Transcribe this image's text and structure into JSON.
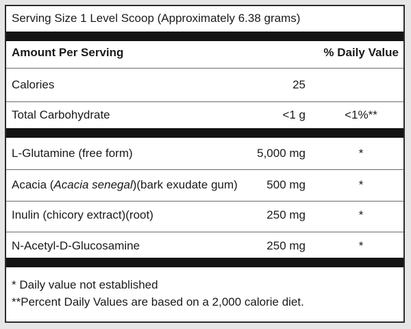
{
  "serving_size": "Serving Size 1 Level Scoop (Approximately 6.38 grams)",
  "header": {
    "amount_per_serving": "Amount Per Serving",
    "daily_value": "% Daily Value"
  },
  "basic_rows": [
    {
      "name": "Calories",
      "amount": "25",
      "dv": ""
    },
    {
      "name": "Total Carbohydrate",
      "amount": "<1 g",
      "dv": "<1%**"
    }
  ],
  "ingredient_rows": [
    {
      "name": "L-Glutamine (free form)",
      "amount": "5,000 mg",
      "dv": "*"
    },
    {
      "name_prefix": "Acacia (",
      "name_italic": "Acacia senegal",
      "name_suffix": ")(bark exudate gum)",
      "amount": "500 mg",
      "dv": "*"
    },
    {
      "name": "Inulin (chicory extract)(root)",
      "amount": "250 mg",
      "dv": "*"
    },
    {
      "name": "N-Acetyl-D-Glucosamine",
      "amount": "250 mg",
      "dv": "*"
    }
  ],
  "footnotes": [
    "* Daily value not established",
    "**Percent Daily Values are based on a 2,000 calorie diet."
  ]
}
